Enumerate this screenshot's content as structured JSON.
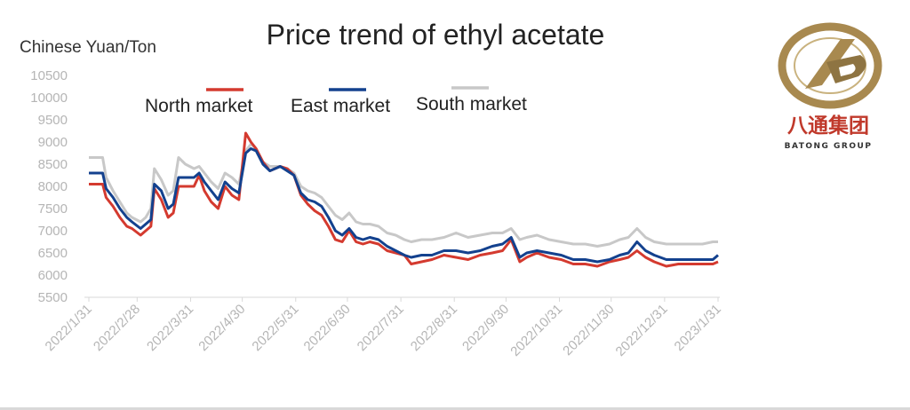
{
  "colors": {
    "north": "#d43a2f",
    "east": "#13418e",
    "south": "#c8c8c8",
    "logo_gold": "#a8894f",
    "logo_red": "#c0392b",
    "text": "#222222",
    "tick": "#b5b5b5"
  },
  "logo": {
    "chinese": "八通集团",
    "english": "BATONG GROUP"
  },
  "chart_data": {
    "type": "line",
    "title": "Price trend of ethyl acetate",
    "ylabel": "Chinese Yuan/Ton",
    "xlabel": "",
    "ylim": [
      5500,
      10500
    ],
    "yticks": [
      5500,
      6000,
      6500,
      7000,
      7500,
      8000,
      8500,
      9000,
      9500,
      10000,
      10500
    ],
    "xlim": [
      "2022-01-31",
      "2023-01-31"
    ],
    "xticks": [
      {
        "label": "2022/1/31",
        "date": "2022-01-31"
      },
      {
        "label": "2022/2/28",
        "date": "2022-02-28"
      },
      {
        "label": "2022/3/31",
        "date": "2022-03-31"
      },
      {
        "label": "2022/4/30",
        "date": "2022-04-30"
      },
      {
        "label": "2022/5/31",
        "date": "2022-05-31"
      },
      {
        "label": "2022/6/30",
        "date": "2022-06-30"
      },
      {
        "label": "2022/7/31",
        "date": "2022-07-31"
      },
      {
        "label": "2022/8/31",
        "date": "2022-08-31"
      },
      {
        "label": "2022/9/30",
        "date": "2022-09-30"
      },
      {
        "label": "2022/10/31",
        "date": "2022-10-31"
      },
      {
        "label": "2022/11/30",
        "date": "2022-11-30"
      },
      {
        "label": "2022/12/31",
        "date": "2022-12-31"
      },
      {
        "label": "2023/1/31",
        "date": "2023-01-31"
      }
    ],
    "grid": false,
    "legend": "top-left",
    "series": [
      {
        "name": "North market",
        "color": "#d43a2f",
        "x": [
          "2022-01-31",
          "2022-02-08",
          "2022-02-10",
          "2022-02-14",
          "2022-02-18",
          "2022-02-22",
          "2022-02-25",
          "2022-03-02",
          "2022-03-05",
          "2022-03-08",
          "2022-03-10",
          "2022-03-14",
          "2022-03-18",
          "2022-03-21",
          "2022-03-24",
          "2022-03-28",
          "2022-04-02",
          "2022-04-05",
          "2022-04-08",
          "2022-04-12",
          "2022-04-16",
          "2022-04-20",
          "2022-04-24",
          "2022-04-28",
          "2022-05-02",
          "2022-05-05",
          "2022-05-08",
          "2022-05-12",
          "2022-05-16",
          "2022-05-19",
          "2022-05-22",
          "2022-05-26",
          "2022-05-30",
          "2022-06-03",
          "2022-06-07",
          "2022-06-11",
          "2022-06-15",
          "2022-06-19",
          "2022-06-23",
          "2022-06-27",
          "2022-07-01",
          "2022-07-05",
          "2022-07-09",
          "2022-07-13",
          "2022-07-18",
          "2022-07-23",
          "2022-07-28",
          "2022-08-02",
          "2022-08-06",
          "2022-08-12",
          "2022-08-18",
          "2022-08-25",
          "2022-09-01",
          "2022-09-08",
          "2022-09-15",
          "2022-09-22",
          "2022-09-28",
          "2022-10-03",
          "2022-10-08",
          "2022-10-12",
          "2022-10-18",
          "2022-10-25",
          "2022-11-01",
          "2022-11-08",
          "2022-11-15",
          "2022-11-22",
          "2022-11-29",
          "2022-12-05",
          "2022-12-10",
          "2022-12-15",
          "2022-12-20",
          "2022-12-25",
          "2023-01-01",
          "2023-01-08",
          "2023-01-15",
          "2023-01-22",
          "2023-01-28",
          "2023-01-31"
        ],
        "y": [
          8050,
          8050,
          7750,
          7550,
          7300,
          7100,
          7050,
          6900,
          7000,
          7100,
          7950,
          7700,
          7300,
          7400,
          8000,
          8000,
          8000,
          8250,
          7900,
          7650,
          7500,
          8000,
          7800,
          7700,
          9200,
          9000,
          8850,
          8550,
          8350,
          8400,
          8450,
          8400,
          8250,
          7800,
          7600,
          7450,
          7350,
          7100,
          6800,
          6750,
          7000,
          6750,
          6700,
          6750,
          6700,
          6550,
          6500,
          6450,
          6250,
          6300,
          6350,
          6450,
          6400,
          6350,
          6450,
          6500,
          6550,
          6800,
          6300,
          6400,
          6500,
          6400,
          6350,
          6250,
          6250,
          6200,
          6300,
          6350,
          6400,
          6550,
          6400,
          6300,
          6200,
          6250,
          6250,
          6250,
          6250,
          6300
        ]
      },
      {
        "name": "East market",
        "color": "#13418e",
        "x": [
          "2022-01-31",
          "2022-02-08",
          "2022-02-10",
          "2022-02-14",
          "2022-02-18",
          "2022-02-22",
          "2022-02-25",
          "2022-03-02",
          "2022-03-05",
          "2022-03-08",
          "2022-03-10",
          "2022-03-14",
          "2022-03-18",
          "2022-03-21",
          "2022-03-24",
          "2022-03-28",
          "2022-04-02",
          "2022-04-05",
          "2022-04-08",
          "2022-04-12",
          "2022-04-16",
          "2022-04-20",
          "2022-04-24",
          "2022-04-28",
          "2022-05-02",
          "2022-05-05",
          "2022-05-08",
          "2022-05-12",
          "2022-05-16",
          "2022-05-19",
          "2022-05-22",
          "2022-05-26",
          "2022-05-30",
          "2022-06-03",
          "2022-06-07",
          "2022-06-11",
          "2022-06-15",
          "2022-06-19",
          "2022-06-23",
          "2022-06-27",
          "2022-07-01",
          "2022-07-05",
          "2022-07-09",
          "2022-07-13",
          "2022-07-18",
          "2022-07-23",
          "2022-07-28",
          "2022-08-02",
          "2022-08-06",
          "2022-08-12",
          "2022-08-18",
          "2022-08-25",
          "2022-09-01",
          "2022-09-08",
          "2022-09-15",
          "2022-09-22",
          "2022-09-28",
          "2022-10-03",
          "2022-10-08",
          "2022-10-12",
          "2022-10-18",
          "2022-10-25",
          "2022-11-01",
          "2022-11-08",
          "2022-11-15",
          "2022-11-22",
          "2022-11-29",
          "2022-12-05",
          "2022-12-10",
          "2022-12-15",
          "2022-12-20",
          "2022-12-25",
          "2023-01-01",
          "2023-01-08",
          "2023-01-15",
          "2023-01-22",
          "2023-01-28",
          "2023-01-31"
        ],
        "y": [
          8300,
          8300,
          7950,
          7750,
          7500,
          7300,
          7200,
          7050,
          7150,
          7250,
          8050,
          7900,
          7500,
          7600,
          8200,
          8200,
          8200,
          8300,
          8100,
          7900,
          7700,
          8100,
          7950,
          7850,
          8750,
          8850,
          8800,
          8500,
          8350,
          8400,
          8450,
          8350,
          8250,
          7850,
          7700,
          7650,
          7550,
          7300,
          7000,
          6900,
          7050,
          6850,
          6800,
          6850,
          6800,
          6650,
          6550,
          6450,
          6400,
          6450,
          6450,
          6550,
          6550,
          6500,
          6550,
          6650,
          6700,
          6850,
          6400,
          6500,
          6550,
          6500,
          6450,
          6350,
          6350,
          6300,
          6350,
          6450,
          6500,
          6750,
          6550,
          6450,
          6350,
          6350,
          6350,
          6350,
          6350,
          6450
        ]
      },
      {
        "name": "South market",
        "color": "#c8c8c8",
        "x": [
          "2022-01-31",
          "2022-02-08",
          "2022-02-10",
          "2022-02-14",
          "2022-02-18",
          "2022-02-22",
          "2022-02-25",
          "2022-03-02",
          "2022-03-05",
          "2022-03-08",
          "2022-03-10",
          "2022-03-14",
          "2022-03-18",
          "2022-03-21",
          "2022-03-24",
          "2022-03-28",
          "2022-04-02",
          "2022-04-05",
          "2022-04-08",
          "2022-04-12",
          "2022-04-16",
          "2022-04-20",
          "2022-04-24",
          "2022-04-28",
          "2022-05-02",
          "2022-05-05",
          "2022-05-08",
          "2022-05-12",
          "2022-05-16",
          "2022-05-19",
          "2022-05-22",
          "2022-05-26",
          "2022-05-30",
          "2022-06-03",
          "2022-06-07",
          "2022-06-11",
          "2022-06-15",
          "2022-06-19",
          "2022-06-23",
          "2022-06-27",
          "2022-07-01",
          "2022-07-05",
          "2022-07-09",
          "2022-07-13",
          "2022-07-18",
          "2022-07-23",
          "2022-07-28",
          "2022-08-02",
          "2022-08-06",
          "2022-08-12",
          "2022-08-18",
          "2022-08-25",
          "2022-09-01",
          "2022-09-08",
          "2022-09-15",
          "2022-09-22",
          "2022-09-28",
          "2022-10-03",
          "2022-10-08",
          "2022-10-12",
          "2022-10-18",
          "2022-10-25",
          "2022-11-01",
          "2022-11-08",
          "2022-11-15",
          "2022-11-22",
          "2022-11-29",
          "2022-12-05",
          "2022-12-10",
          "2022-12-15",
          "2022-12-20",
          "2022-12-25",
          "2023-01-01",
          "2023-01-08",
          "2023-01-15",
          "2023-01-22",
          "2023-01-28",
          "2023-01-31"
        ],
        "y": [
          8650,
          8650,
          8200,
          7900,
          7650,
          7400,
          7300,
          7200,
          7300,
          7500,
          8400,
          8150,
          7800,
          7900,
          8650,
          8500,
          8400,
          8450,
          8300,
          8100,
          7950,
          8300,
          8200,
          8050,
          8800,
          8950,
          8850,
          8550,
          8450,
          8450,
          8450,
          8400,
          8300,
          8000,
          7900,
          7850,
          7750,
          7550,
          7350,
          7250,
          7400,
          7200,
          7150,
          7150,
          7100,
          6950,
          6900,
          6800,
          6750,
          6800,
          6800,
          6850,
          6950,
          6850,
          6900,
          6950,
          6950,
          7050,
          6800,
          6850,
          6900,
          6800,
          6750,
          6700,
          6700,
          6650,
          6700,
          6800,
          6850,
          7050,
          6850,
          6750,
          6700,
          6700,
          6700,
          6700,
          6750,
          6750
        ]
      }
    ]
  }
}
